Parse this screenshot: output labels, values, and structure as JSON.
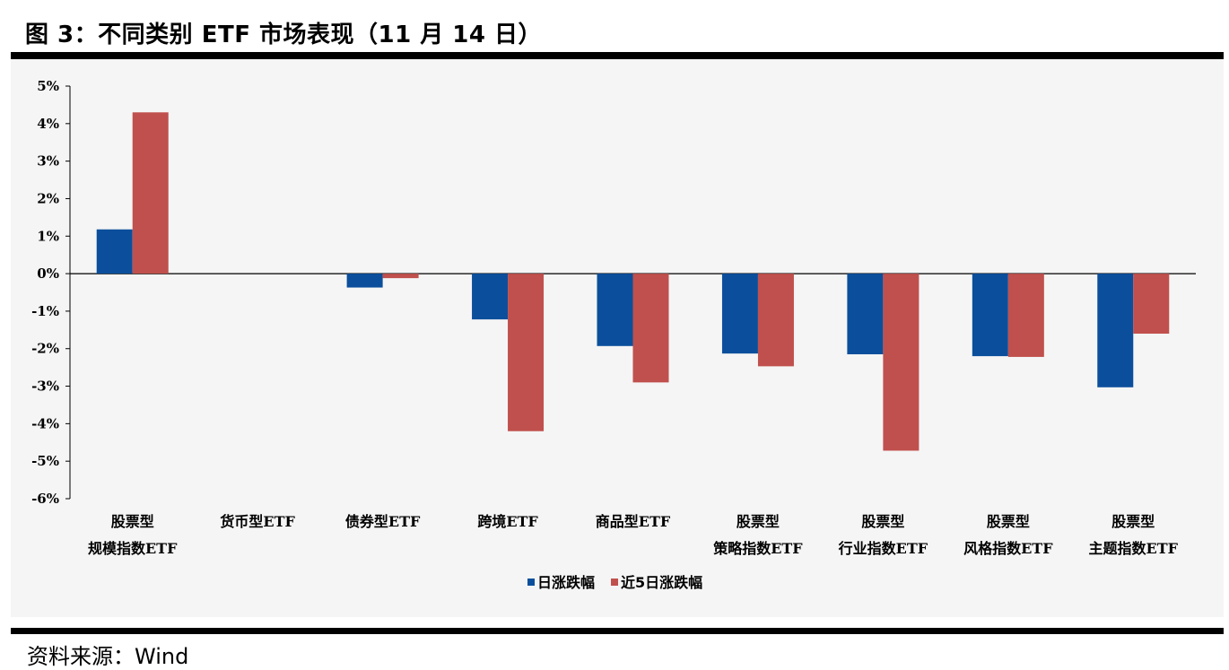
{
  "figure": {
    "title": "图 3：不同类别 ETF 市场表现（11 月 14 日）",
    "source": "资料来源：Wind"
  },
  "chart_data": {
    "type": "bar",
    "categories": [
      [
        "股票型",
        "规模指数ETF"
      ],
      [
        "货币型ETF"
      ],
      [
        "债券型ETF"
      ],
      [
        "跨境ETF"
      ],
      [
        "商品型ETF"
      ],
      [
        "股票型",
        "策略指数ETF"
      ],
      [
        "股票型",
        "行业指数ETF"
      ],
      [
        "股票型",
        "风格指数ETF"
      ],
      [
        "股票型",
        "主题指数ETF"
      ]
    ],
    "series": [
      {
        "name": "日涨跌幅",
        "color": "#0B4F9C",
        "values": [
          1.18,
          0.0,
          -0.37,
          -1.22,
          -1.93,
          -2.13,
          -2.15,
          -2.2,
          -3.03
        ]
      },
      {
        "name": "近5日涨跌幅",
        "color": "#C0504D",
        "values": [
          4.3,
          0.0,
          -0.12,
          -4.2,
          -2.9,
          -2.47,
          -4.72,
          -2.22,
          -1.6
        ]
      }
    ],
    "ylim": [
      -6,
      5
    ],
    "yticks": [
      5,
      4,
      3,
      2,
      1,
      0,
      -1,
      -2,
      -3,
      -4,
      -5,
      -6
    ],
    "ytick_labels": [
      "5%",
      "4%",
      "3%",
      "2%",
      "1%",
      "0%",
      "-1%",
      "-2%",
      "-3%",
      "-4%",
      "-5%",
      "-6%"
    ],
    "xlabel": "",
    "ylabel": "",
    "grid": false,
    "legend_position": "bottom-center"
  }
}
